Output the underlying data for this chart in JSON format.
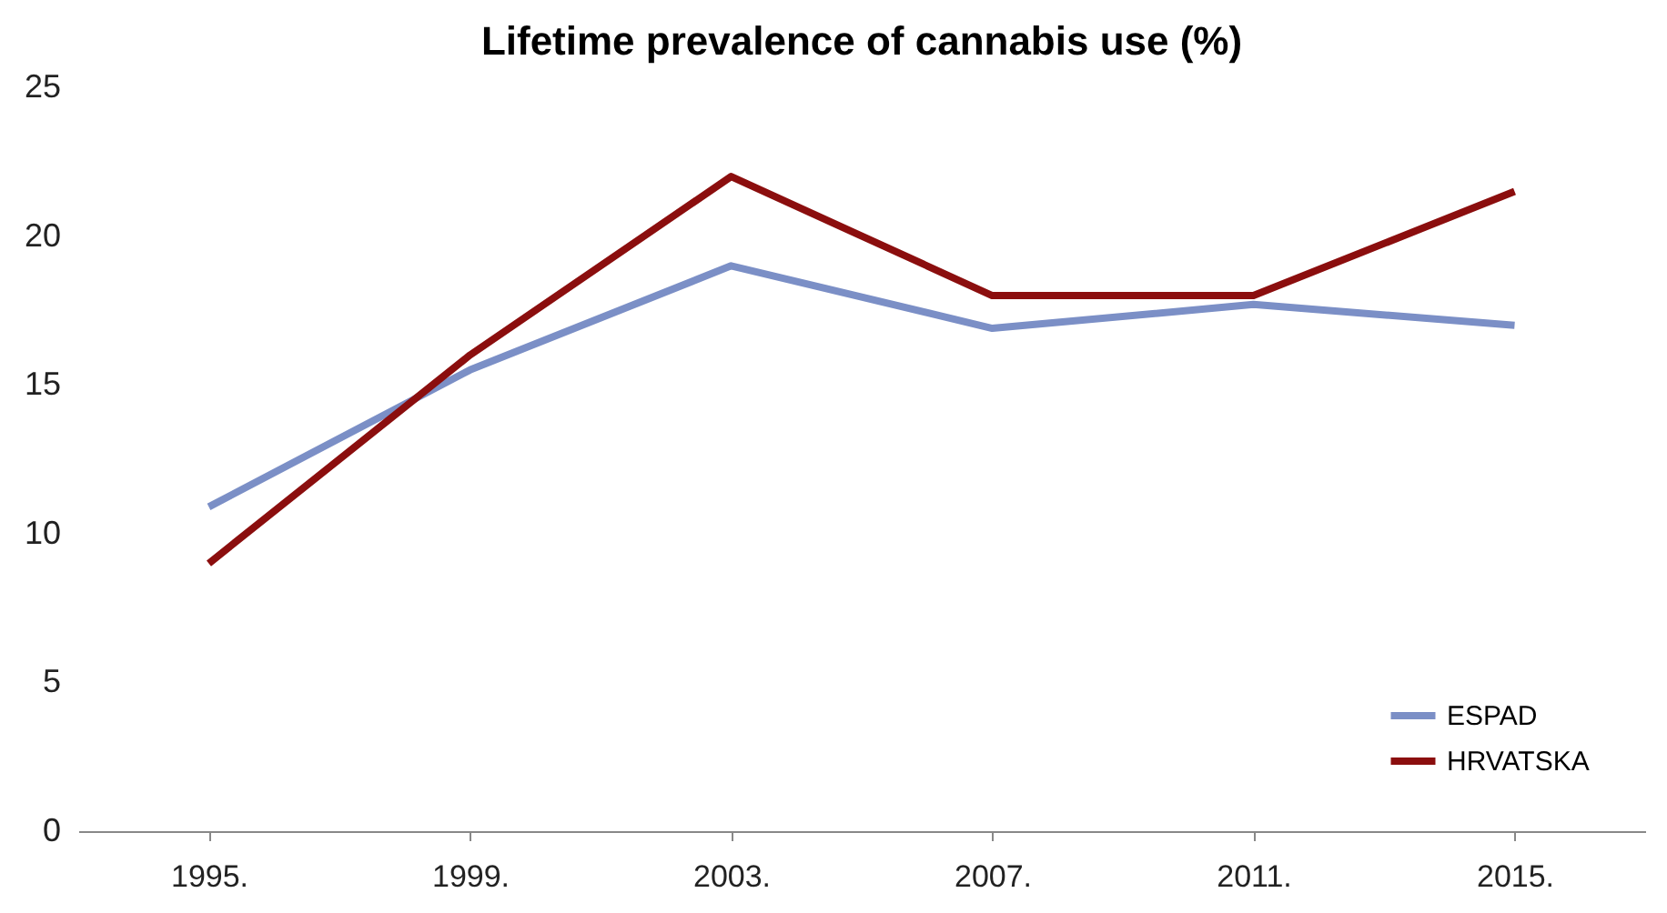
{
  "chart_data": {
    "type": "line",
    "title": "Lifetime prevalence of cannabis use (%)",
    "categories": [
      "1995.",
      "1999.",
      "2003.",
      "2007.",
      "2011.",
      "2015."
    ],
    "series": [
      {
        "name": "ESPAD",
        "color": "#7b8fc6",
        "values": [
          10.9,
          15.5,
          19,
          16.9,
          17.7,
          17
        ]
      },
      {
        "name": "HRVATSKA",
        "color": "#8b0e0e",
        "values": [
          9,
          16,
          22,
          18,
          18,
          21.5
        ]
      }
    ],
    "ylim": [
      0,
      25
    ],
    "yticks": [
      0,
      5,
      10,
      15,
      20,
      25
    ],
    "grid": false,
    "legend": "bottom right",
    "marker": "none",
    "line_style": "solid"
  }
}
